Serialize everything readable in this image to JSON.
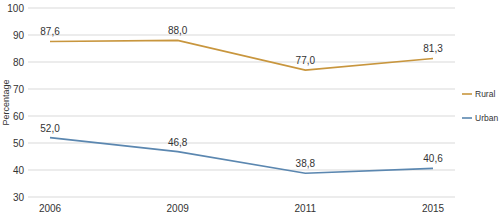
{
  "chart_data": {
    "type": "line",
    "y_label": "Percentage",
    "categories": [
      "2006",
      "2009",
      "2011",
      "2015"
    ],
    "series": [
      {
        "name": "Urban",
        "color": "#5b87b0",
        "values": [
          52.0,
          46.8,
          38.8,
          40.6
        ],
        "value_labels": [
          "52,0",
          "46,8",
          "38,8",
          "40,6"
        ]
      },
      {
        "name": "Rural",
        "color": "#c8963e",
        "values": [
          87.6,
          88.0,
          77.0,
          81.3
        ],
        "value_labels": [
          "87,6",
          "88,0",
          "77,0",
          "81,3"
        ]
      }
    ],
    "ylim": [
      30,
      100
    ],
    "yticks": [
      30,
      40,
      50,
      60,
      70,
      80,
      90,
      100
    ],
    "grid": true,
    "legend": "right",
    "data_labels": true
  }
}
